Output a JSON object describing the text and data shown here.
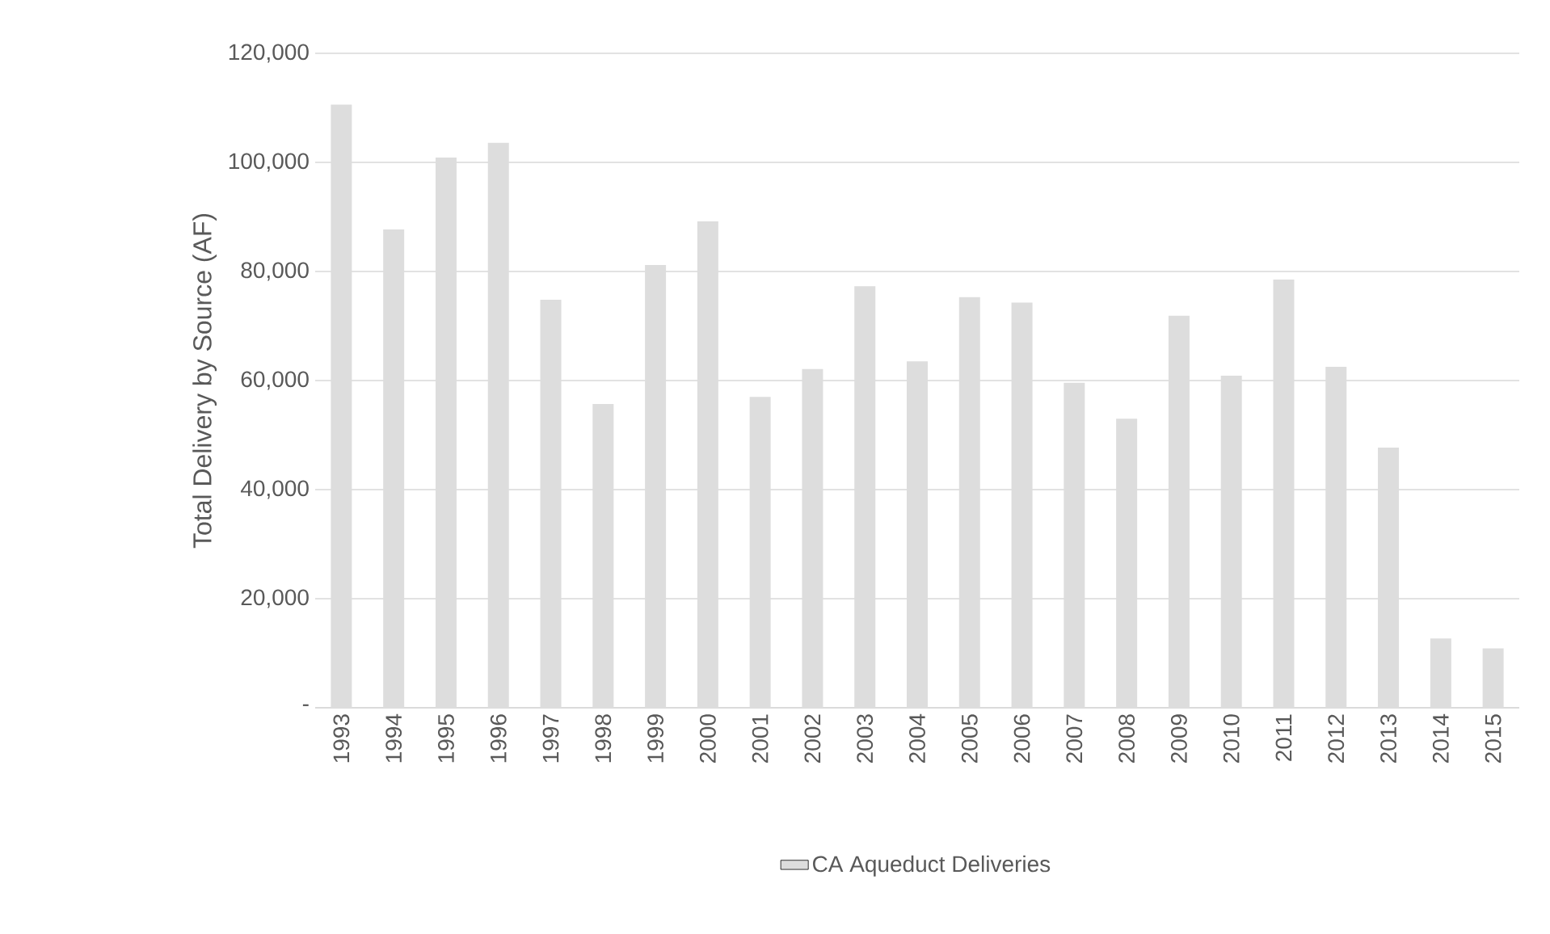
{
  "chart_data": {
    "type": "bar",
    "ylabel": "Total Delivery by Source (AF)",
    "categories": [
      "1993",
      "1994",
      "1995",
      "1996",
      "1997",
      "1998",
      "1999",
      "2000",
      "2001",
      "2002",
      "2003",
      "2004",
      "2005",
      "2006",
      "2007",
      "2008",
      "2009",
      "2010",
      "2011",
      "2012",
      "2013",
      "2014",
      "2015"
    ],
    "series": [
      {
        "name": "CA Aqueduct Deliveries",
        "color": "#dddddd",
        "values": [
          110600,
          87700,
          100900,
          103600,
          74800,
          55700,
          81200,
          89200,
          57000,
          62100,
          77300,
          63500,
          75300,
          74300,
          59600,
          53000,
          71900,
          60900,
          78500,
          62500,
          47700,
          12700,
          10900
        ]
      }
    ],
    "ylim": [
      0,
      120000
    ],
    "yticks": [
      {
        "value": 0,
        "label": "-"
      },
      {
        "value": 20000,
        "label": "20,000"
      },
      {
        "value": 40000,
        "label": "40,000"
      },
      {
        "value": 60000,
        "label": "60,000"
      },
      {
        "value": 80000,
        "label": "80,000"
      },
      {
        "value": 100000,
        "label": "100,000"
      },
      {
        "value": 120000,
        "label": "120,000"
      }
    ],
    "grid": "y",
    "legend": "bottom"
  }
}
